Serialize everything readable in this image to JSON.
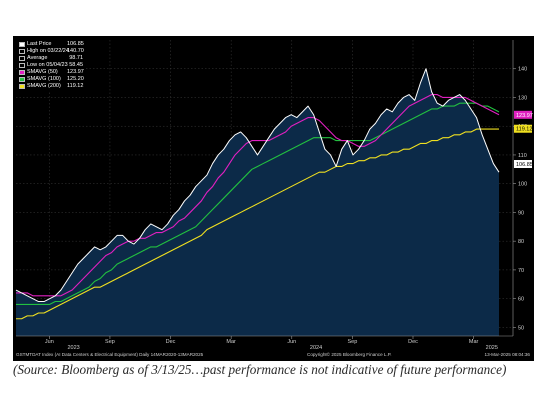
{
  "chart_data": {
    "type": "line",
    "y_axis_side": "right",
    "ylim": [
      47,
      150
    ],
    "y_ticks": [
      50,
      60,
      70,
      80,
      90,
      100,
      110,
      120,
      130,
      140
    ],
    "x_tick_labels": [
      "Jun",
      "Sep",
      "Dec",
      "Mar",
      "Jun",
      "Sep",
      "Dec",
      "Mar"
    ],
    "x_year_labels": [
      "2023",
      "2024",
      "2025"
    ],
    "grid": true,
    "legend_position": "top-left",
    "legend": [
      {
        "name": "Last Price",
        "value": "106.85",
        "color": "#ffffff"
      },
      {
        "name": "High on 03/22/24",
        "value": "140.70",
        "color": "#000000"
      },
      {
        "name": "Average",
        "value": "98.71",
        "color": "#000000"
      },
      {
        "name": "Low on 05/04/23",
        "value": "58.45",
        "color": "#000000"
      },
      {
        "name": "SMAVG (50)",
        "value": "123.97",
        "color": "#e020c0"
      },
      {
        "name": "SMAVG (100)",
        "value": "125.20",
        "color": "#22c040"
      },
      {
        "name": "SMAVG (200)",
        "value": "119.12",
        "color": "#f0e020"
      }
    ],
    "series": [
      {
        "name": "Last Price",
        "color": "#ffffff",
        "values": [
          63,
          62,
          61,
          60,
          59,
          59,
          60,
          61,
          63,
          66,
          69,
          72,
          74,
          76,
          78,
          77,
          78,
          80,
          82,
          82,
          80,
          79,
          81,
          84,
          86,
          85,
          84,
          86,
          89,
          91,
          94,
          96,
          99,
          101,
          103,
          107,
          110,
          112,
          115,
          117,
          118,
          116,
          113,
          110,
          113,
          116,
          119,
          121,
          123,
          124,
          123,
          125,
          127,
          124,
          118,
          112,
          110,
          106,
          112,
          115,
          110,
          112,
          115,
          119,
          121,
          124,
          126,
          125,
          128,
          130,
          131,
          129,
          135,
          140,
          132,
          128,
          127,
          129,
          130,
          131,
          129,
          126,
          123,
          117,
          112,
          107,
          104
        ]
      },
      {
        "name": "SMAVG (50)",
        "color": "#e020c0",
        "values": [
          62,
          62,
          62,
          61,
          61,
          61,
          61,
          61,
          61,
          62,
          63,
          65,
          67,
          69,
          71,
          73,
          75,
          76,
          78,
          79,
          80,
          80,
          81,
          81,
          82,
          83,
          83,
          84,
          85,
          87,
          88,
          90,
          92,
          94,
          97,
          99,
          102,
          104,
          107,
          110,
          112,
          114,
          115,
          115,
          115,
          115,
          116,
          117,
          118,
          120,
          121,
          122,
          123,
          123,
          122,
          120,
          118,
          116,
          115,
          115,
          114,
          113,
          113,
          114,
          115,
          117,
          119,
          121,
          123,
          125,
          127,
          128,
          129,
          130,
          131,
          131,
          130,
          130,
          130,
          130,
          130,
          129,
          128,
          127,
          126,
          125,
          124
        ]
      },
      {
        "name": "SMAVG (100)",
        "color": "#22c040",
        "values": [
          58,
          58,
          58,
          58,
          58,
          58,
          58,
          59,
          59,
          60,
          61,
          62,
          63,
          64,
          66,
          67,
          69,
          70,
          72,
          73,
          74,
          75,
          76,
          77,
          78,
          78,
          79,
          80,
          81,
          82,
          83,
          84,
          85,
          87,
          89,
          91,
          93,
          95,
          97,
          99,
          101,
          103,
          105,
          106,
          107,
          108,
          109,
          110,
          111,
          112,
          113,
          114,
          115,
          116,
          116,
          116,
          116,
          115,
          115,
          115,
          115,
          115,
          115,
          115,
          116,
          117,
          118,
          119,
          120,
          121,
          122,
          123,
          124,
          125,
          126,
          126,
          127,
          127,
          127,
          128,
          128,
          128,
          128,
          127,
          127,
          126,
          125
        ]
      },
      {
        "name": "SMAVG (200)",
        "color": "#f0e020",
        "values": [
          53,
          53,
          54,
          54,
          55,
          55,
          56,
          57,
          58,
          59,
          60,
          61,
          62,
          63,
          64,
          64,
          65,
          66,
          67,
          68,
          69,
          70,
          71,
          72,
          73,
          74,
          75,
          76,
          77,
          78,
          79,
          80,
          81,
          82,
          84,
          85,
          86,
          87,
          88,
          89,
          90,
          91,
          92,
          93,
          94,
          95,
          96,
          97,
          98,
          99,
          100,
          101,
          102,
          103,
          104,
          104,
          105,
          106,
          106,
          107,
          107,
          108,
          108,
          109,
          109,
          110,
          110,
          111,
          111,
          112,
          112,
          113,
          114,
          114,
          115,
          115,
          116,
          116,
          117,
          117,
          118,
          118,
          119,
          119,
          119,
          119,
          119
        ]
      }
    ],
    "value_tags": [
      {
        "value": "123.97",
        "y": 123.97,
        "bg": "#e020c0",
        "fg": "#ffffff"
      },
      {
        "value": "119.12",
        "y": 119.12,
        "bg": "#f0e020",
        "fg": "#000000"
      },
      {
        "value": "106.85",
        "y": 106.85,
        "bg": "#ffffff",
        "fg": "#000000"
      }
    ]
  },
  "footer": {
    "left": "GSTMTDAT Index (AI Data Centers & Electrical Equipment)  Daily 14MAR2020-13MAR2025",
    "mid": "Copyright© 2025 Bloomberg Finance L.P.",
    "right": "13-Mar-2025 08:04:36"
  },
  "caption": "(Source: Bloomberg as of 3/13/25…past performance is not indicative of future performance)"
}
